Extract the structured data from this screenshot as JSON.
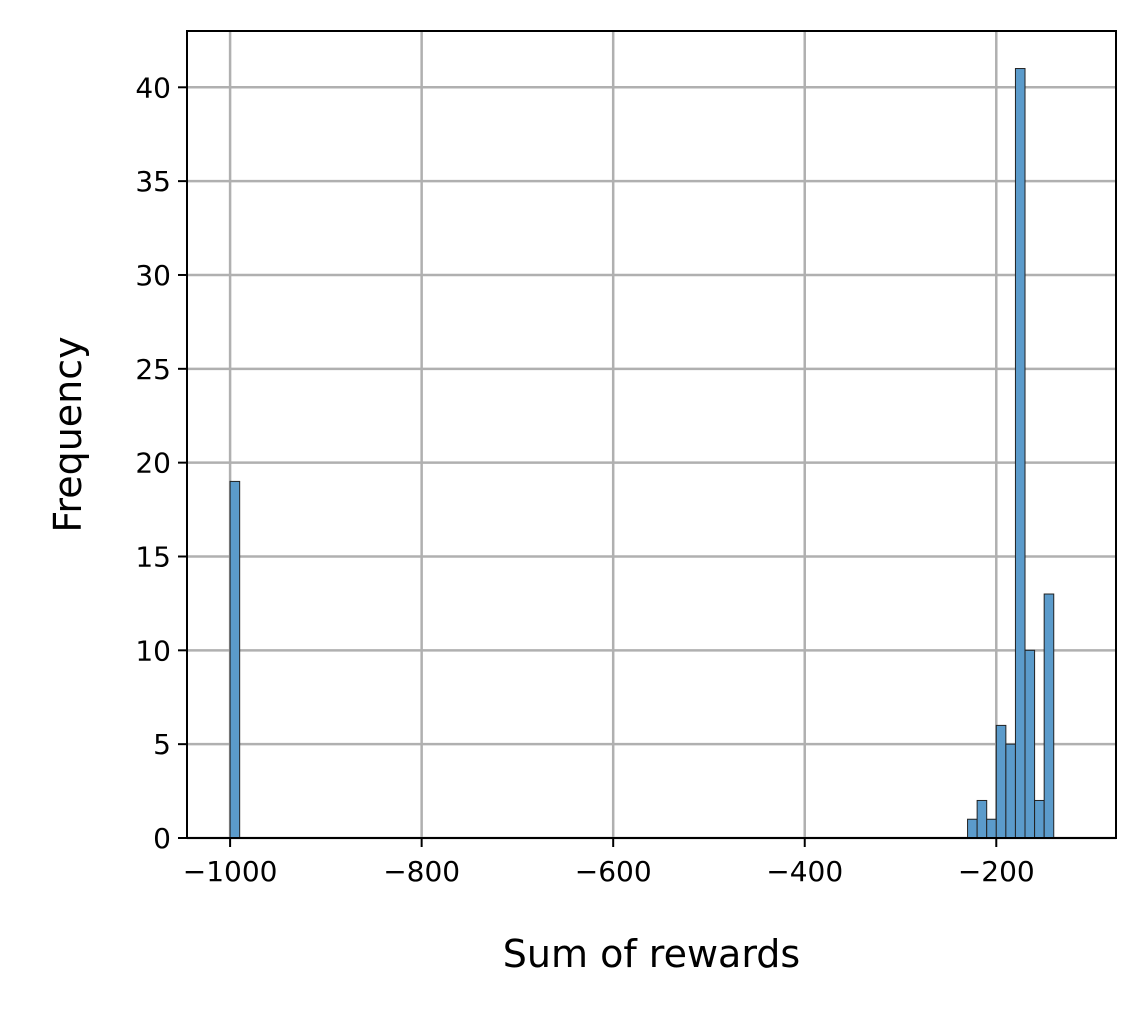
{
  "chart_data": {
    "type": "bar",
    "title": "",
    "xlabel": "Sum of rewards",
    "ylabel": "Frequency",
    "xlim": [
      -1045,
      -75
    ],
    "ylim": [
      0,
      43
    ],
    "grid": true,
    "legend": "none",
    "xticks": [
      {
        "value": -1000,
        "label": "−1000"
      },
      {
        "value": -800,
        "label": "−800"
      },
      {
        "value": -600,
        "label": "−600"
      },
      {
        "value": -400,
        "label": "−400"
      },
      {
        "value": -200,
        "label": "−200"
      }
    ],
    "yticks": [
      {
        "value": 0,
        "label": "0"
      },
      {
        "value": 5,
        "label": "5"
      },
      {
        "value": 10,
        "label": "10"
      },
      {
        "value": 15,
        "label": "15"
      },
      {
        "value": 20,
        "label": "20"
      },
      {
        "value": 25,
        "label": "25"
      },
      {
        "value": 30,
        "label": "30"
      },
      {
        "value": 35,
        "label": "35"
      },
      {
        "value": 40,
        "label": "40"
      }
    ],
    "bins": [
      {
        "x0": -1000,
        "x1": -990,
        "count": 19
      },
      {
        "x0": -230,
        "x1": -220,
        "count": 1
      },
      {
        "x0": -220,
        "x1": -210,
        "count": 2
      },
      {
        "x0": -210,
        "x1": -200,
        "count": 1
      },
      {
        "x0": -200,
        "x1": -190,
        "count": 6
      },
      {
        "x0": -190,
        "x1": -180,
        "count": 5
      },
      {
        "x0": -180,
        "x1": -170,
        "count": 41
      },
      {
        "x0": -170,
        "x1": -160,
        "count": 10
      },
      {
        "x0": -160,
        "x1": -150,
        "count": 2
      },
      {
        "x0": -150,
        "x1": -140,
        "count": 13
      }
    ],
    "colors": {
      "bar": "#5b9bcb",
      "bar_edge": "#222222",
      "grid": "#b0b0b0",
      "axis": "#000000"
    }
  }
}
